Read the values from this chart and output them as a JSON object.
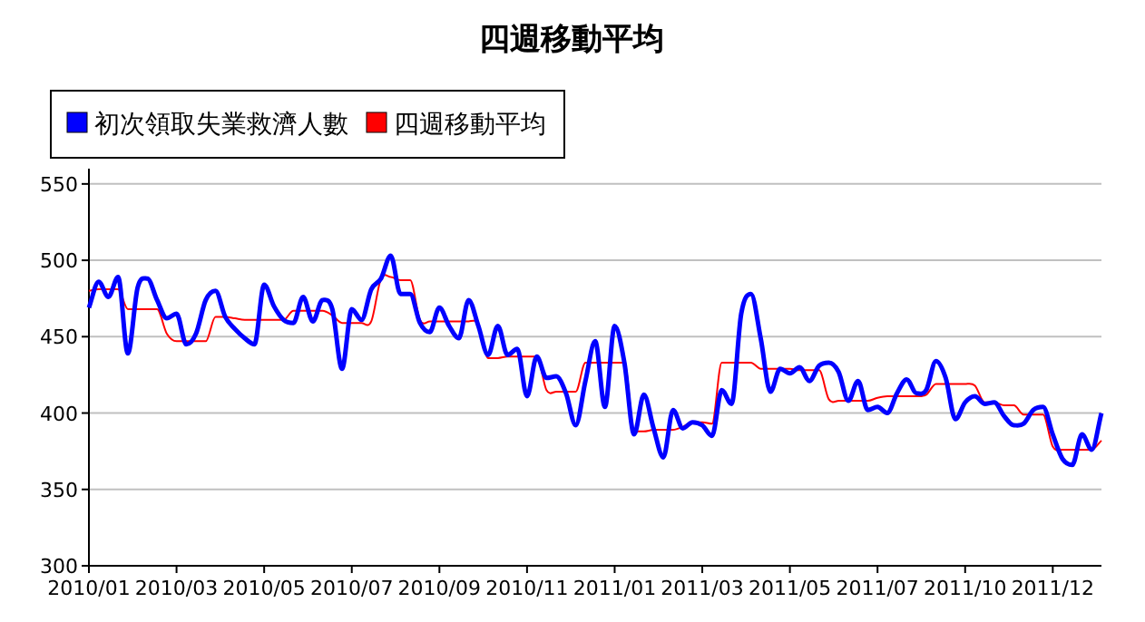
{
  "chart_data": {
    "type": "line",
    "title": "四週移動平均",
    "categories": [
      "2010/01",
      null,
      null,
      null,
      null,
      null,
      null,
      null,
      null,
      "2010/03",
      null,
      null,
      null,
      null,
      null,
      null,
      null,
      null,
      "2010/05",
      null,
      null,
      null,
      null,
      null,
      null,
      null,
      null,
      "2010/07",
      null,
      null,
      null,
      null,
      null,
      null,
      null,
      null,
      "2010/09",
      null,
      null,
      null,
      null,
      null,
      null,
      null,
      null,
      "2010/11",
      null,
      null,
      null,
      null,
      null,
      null,
      null,
      null,
      "2011/01",
      null,
      null,
      null,
      null,
      null,
      null,
      null,
      null,
      "2011/03",
      null,
      null,
      null,
      null,
      null,
      null,
      null,
      null,
      "2011/05",
      null,
      null,
      null,
      null,
      null,
      null,
      null,
      null,
      "2011/07",
      null,
      null,
      null,
      null,
      null,
      null,
      null,
      null,
      "2011/10",
      null,
      null,
      null,
      null,
      null,
      null,
      null,
      null,
      "2011/12",
      null,
      null,
      null,
      null,
      null
    ],
    "series": [
      {
        "name": "初次領取失業救濟人數",
        "color": "#0000ff",
        "values": [
          469,
          486,
          476,
          489,
          439,
          482,
          488,
          474,
          462,
          465,
          445,
          452,
          474,
          480,
          463,
          455,
          449,
          445,
          484,
          470,
          461,
          459,
          476,
          460,
          474,
          468,
          429,
          468,
          461,
          481,
          488,
          503,
          478,
          478,
          459,
          453,
          469,
          457,
          449,
          474,
          457,
          438,
          457,
          438,
          442,
          411,
          437,
          423,
          424,
          413,
          392,
          421,
          447,
          404,
          457,
          433,
          386,
          412,
          390,
          371,
          402,
          390,
          394,
          392,
          385,
          415,
          406,
          465,
          478,
          449,
          414,
          429,
          426,
          430,
          421,
          431,
          433,
          427,
          408,
          421,
          402,
          404,
          400,
          413,
          422,
          413,
          415,
          434,
          423,
          396,
          407,
          411,
          406,
          407,
          398,
          392,
          393,
          402,
          404,
          386,
          370,
          366,
          386,
          376,
          400
        ]
      },
      {
        "name": "四週移動平均",
        "color": "#ff0000",
        "values": [
          480,
          481,
          481,
          481,
          468,
          468,
          468,
          468,
          452,
          447,
          447,
          447,
          447,
          463,
          463,
          462,
          461,
          461,
          461,
          461,
          461,
          467,
          467,
          467,
          467,
          464,
          459,
          459,
          459,
          460,
          488,
          489,
          487,
          487,
          461,
          460,
          460,
          460,
          460,
          460,
          458,
          436,
          436,
          437,
          437,
          437,
          437,
          415,
          414,
          414,
          414,
          433,
          433,
          433,
          433,
          433,
          388,
          388,
          389,
          389,
          389,
          391,
          394,
          394,
          393,
          433,
          433,
          433,
          433,
          429,
          429,
          429,
          429,
          428,
          428,
          428,
          409,
          408,
          408,
          408,
          408,
          410,
          411,
          411,
          411,
          411,
          412,
          419,
          419,
          419,
          419,
          418,
          407,
          407,
          405,
          405,
          399,
          399,
          399,
          378,
          376,
          376,
          376,
          376,
          382
        ]
      }
    ],
    "ylim": [
      300,
      560
    ],
    "yticks": [
      300,
      350,
      400,
      450,
      500,
      550
    ],
    "grid": "y",
    "legend": "top left"
  }
}
